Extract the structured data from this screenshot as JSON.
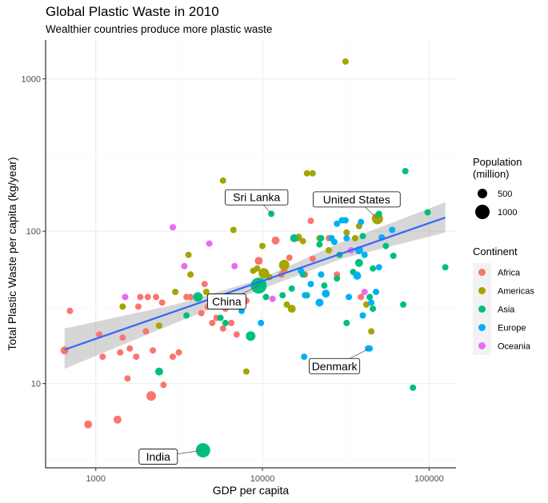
{
  "title": "Global Plastic Waste in 2010",
  "subtitle": "Wealthier countries produce more plastic waste",
  "colors": {
    "Africa": "#F8766D",
    "Americas": "#A3A500",
    "Asia": "#00BF7D",
    "Europe": "#00B0F6",
    "Oceania": "#E76BF3",
    "trend_line": "#3366FF",
    "confidence_band": "#999999"
  },
  "chart_data": {
    "type": "scatter",
    "xlabel": "GDP per capita",
    "ylabel": "Total Plastic Waste per capita (kg/year)",
    "x_scale": "log10",
    "y_scale": "log10",
    "xlim": [
      500,
      145000
    ],
    "ylim": [
      2.8,
      1800
    ],
    "x_ticks": [
      1000,
      10000,
      100000
    ],
    "x_tick_labels": [
      "1000",
      "10000",
      "100000"
    ],
    "y_ticks": [
      10,
      100,
      1000
    ],
    "y_tick_labels": [
      "10",
      "100",
      "1000"
    ],
    "grid": true,
    "legend_position": "right",
    "size_legend": {
      "title": [
        "Population",
        "(million)"
      ],
      "entries": [
        {
          "label": "500",
          "value": 500
        },
        {
          "label": "1000",
          "value": 1000
        }
      ]
    },
    "color_legend": {
      "title": "Continent",
      "entries": [
        "Africa",
        "Americas",
        "Asia",
        "Europe",
        "Oceania"
      ]
    },
    "trend": {
      "method": "linear fit on log scales",
      "line": [
        [
          650,
          16.7
        ],
        [
          125000,
          123
        ]
      ],
      "band": [
        [
          650,
          12.5,
          23
        ],
        [
          3000,
          25,
          33
        ],
        [
          9500,
          41,
          48
        ],
        [
          30000,
          66,
          85
        ],
        [
          125000,
          98,
          155
        ]
      ]
    },
    "annotations": [
      {
        "label": "Sri Lanka",
        "x": 11500,
        "y": 128
      },
      {
        "label": "United States",
        "x": 49000,
        "y": 121
      },
      {
        "label": "China",
        "x": 9500,
        "y": 44
      },
      {
        "label": "Denmark",
        "x": 44000,
        "y": 17
      },
      {
        "label": "India",
        "x": 4400,
        "y": 3.65
      }
    ],
    "series": [
      {
        "name": "Africa",
        "points": [
          [
            650,
            16.5,
            10
          ],
          [
            700,
            30,
            8
          ],
          [
            900,
            5.4,
            10
          ],
          [
            1050,
            21,
            8
          ],
          [
            1100,
            15,
            8
          ],
          [
            1350,
            5.8,
            10
          ],
          [
            1400,
            16,
            8
          ],
          [
            1450,
            20,
            8
          ],
          [
            1500,
            37,
            8
          ],
          [
            1550,
            10.8,
            8
          ],
          [
            1600,
            17,
            8
          ],
          [
            1750,
            15,
            8
          ],
          [
            1800,
            32,
            8
          ],
          [
            1850,
            37,
            8
          ],
          [
            2000,
            22,
            8
          ],
          [
            2050,
            37,
            8
          ],
          [
            2150,
            8.3,
            12
          ],
          [
            2200,
            16.5,
            8
          ],
          [
            2300,
            37,
            8
          ],
          [
            2500,
            34,
            8
          ],
          [
            2550,
            9.8,
            8
          ],
          [
            2900,
            15,
            8
          ],
          [
            3150,
            16,
            8
          ],
          [
            3500,
            37,
            8
          ],
          [
            3700,
            37,
            8
          ],
          [
            4300,
            29,
            8
          ],
          [
            4500,
            45,
            8
          ],
          [
            4700,
            32,
            8
          ],
          [
            5000,
            25,
            8
          ],
          [
            5300,
            27,
            8
          ],
          [
            5800,
            23,
            8
          ],
          [
            6000,
            31,
            8
          ],
          [
            6500,
            25,
            8
          ],
          [
            7000,
            21,
            8
          ],
          [
            7200,
            37,
            8
          ],
          [
            8000,
            35,
            8
          ],
          [
            9500,
            64,
            10
          ],
          [
            10500,
            52,
            8
          ],
          [
            12000,
            87,
            10
          ],
          [
            13000,
            52,
            8
          ],
          [
            13500,
            55,
            8
          ],
          [
            14500,
            67,
            8
          ],
          [
            16500,
            90,
            8
          ],
          [
            18000,
            52,
            8
          ],
          [
            19500,
            117,
            8
          ],
          [
            20000,
            66,
            8
          ],
          [
            25000,
            90,
            8
          ],
          [
            28000,
            52,
            8
          ],
          [
            37000,
            52,
            8
          ],
          [
            39000,
            37,
            8
          ]
        ]
      },
      {
        "name": "Americas",
        "points": [
          [
            1450,
            32,
            8
          ],
          [
            2400,
            24,
            8
          ],
          [
            3000,
            40,
            8
          ],
          [
            3600,
            70,
            8
          ],
          [
            3700,
            52,
            8
          ],
          [
            4600,
            40,
            8
          ],
          [
            5800,
            215,
            8
          ],
          [
            6700,
            102,
            8
          ],
          [
            7500,
            37,
            8
          ],
          [
            8000,
            12,
            8
          ],
          [
            8800,
            55,
            8
          ],
          [
            9300,
            57,
            8
          ],
          [
            10000,
            80,
            8
          ],
          [
            10200,
            53,
            13
          ],
          [
            11000,
            50,
            8
          ],
          [
            13500,
            60,
            13
          ],
          [
            14000,
            33,
            8
          ],
          [
            15000,
            31,
            10
          ],
          [
            16500,
            92,
            8
          ],
          [
            17500,
            86,
            8
          ],
          [
            18500,
            240,
            8
          ],
          [
            20000,
            240,
            8
          ],
          [
            22000,
            90,
            8
          ],
          [
            25000,
            75,
            8
          ],
          [
            30000,
            150,
            8
          ],
          [
            31500,
            1300,
            8
          ],
          [
            32000,
            98,
            8
          ],
          [
            36000,
            90,
            8
          ],
          [
            38000,
            108,
            8
          ],
          [
            42000,
            33,
            8
          ],
          [
            45000,
            22,
            8
          ],
          [
            49000,
            121,
            14
          ]
        ]
      },
      {
        "name": "Asia",
        "points": [
          [
            2400,
            12,
            10
          ],
          [
            3500,
            28,
            8
          ],
          [
            4100,
            37,
            12
          ],
          [
            4400,
            3.65,
            18
          ],
          [
            5600,
            27,
            8
          ],
          [
            6000,
            25,
            8
          ],
          [
            7500,
            37,
            8
          ],
          [
            8500,
            20.5,
            12
          ],
          [
            9500,
            44,
            20
          ],
          [
            10500,
            37,
            8
          ],
          [
            11300,
            130,
            8
          ],
          [
            13200,
            38,
            8
          ],
          [
            15000,
            42,
            8
          ],
          [
            15500,
            90,
            10
          ],
          [
            17500,
            52,
            8
          ],
          [
            18500,
            38,
            8
          ],
          [
            22000,
            82,
            8
          ],
          [
            22500,
            90,
            8
          ],
          [
            23500,
            44,
            8
          ],
          [
            28000,
            49,
            8
          ],
          [
            29000,
            70,
            8
          ],
          [
            32000,
            25,
            8
          ],
          [
            35000,
            54,
            8
          ],
          [
            38000,
            62,
            10
          ],
          [
            40000,
            93,
            8
          ],
          [
            44000,
            37,
            8
          ],
          [
            46000,
            31,
            8
          ],
          [
            46000,
            57,
            8
          ],
          [
            50000,
            130,
            8
          ],
          [
            55000,
            80,
            8
          ],
          [
            61000,
            69,
            8
          ],
          [
            70000,
            33,
            8
          ],
          [
            72000,
            248,
            8
          ],
          [
            80000,
            9.4,
            8
          ],
          [
            98000,
            133,
            8
          ],
          [
            125000,
            58,
            8
          ]
        ]
      },
      {
        "name": "Europe",
        "points": [
          [
            5500,
            37,
            8
          ],
          [
            7500,
            30,
            8
          ],
          [
            9800,
            25,
            8
          ],
          [
            17000,
            55,
            8
          ],
          [
            17800,
            15,
            8
          ],
          [
            18000,
            38,
            8
          ],
          [
            19500,
            45,
            8
          ],
          [
            22000,
            34,
            10
          ],
          [
            22500,
            52,
            8
          ],
          [
            24000,
            39,
            10
          ],
          [
            26000,
            90,
            8
          ],
          [
            27000,
            85,
            8
          ],
          [
            28000,
            112,
            8
          ],
          [
            30000,
            118,
            8
          ],
          [
            31500,
            118,
            8
          ],
          [
            32000,
            90,
            8
          ],
          [
            33000,
            37,
            8
          ],
          [
            37000,
            51,
            10
          ],
          [
            38000,
            75,
            10
          ],
          [
            39000,
            115,
            8
          ],
          [
            40000,
            28,
            8
          ],
          [
            41000,
            70,
            8
          ],
          [
            43000,
            17,
            8
          ],
          [
            44000,
            17,
            8
          ],
          [
            45000,
            34,
            8
          ],
          [
            48000,
            40,
            8
          ],
          [
            50000,
            58,
            8
          ],
          [
            52000,
            91,
            8
          ],
          [
            60000,
            102,
            8
          ]
        ]
      },
      {
        "name": "Oceania",
        "points": [
          [
            1500,
            37,
            8
          ],
          [
            2900,
            106,
            8
          ],
          [
            3400,
            59,
            8
          ],
          [
            4800,
            83,
            8
          ],
          [
            6800,
            59,
            8
          ],
          [
            11500,
            36,
            8
          ],
          [
            34000,
            75,
            8
          ],
          [
            41000,
            40,
            8
          ]
        ]
      }
    ]
  }
}
